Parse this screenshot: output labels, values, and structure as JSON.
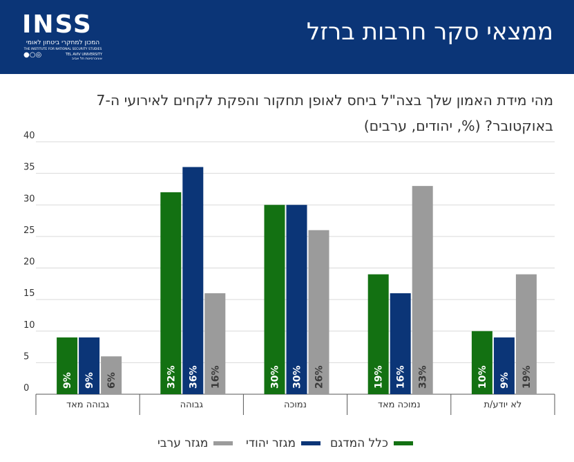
{
  "header": {
    "title": "ממצאי סקר חרבות ברזל",
    "logo": {
      "word": "INSS",
      "hebrew": "המכון למחקרי ביטחון לאומי",
      "english": "THE INSTITUTE FOR NATIONAL SECURITY STUDIES",
      "university_he": "אוניברסיטת תל אביב",
      "university_en": "TEL AVIV UNIVERSITY"
    }
  },
  "question": {
    "line1": "מהי מידת האמון שלך בצה\"ל ביחס לאופן תחקור והפקת לקחים לאירועי ה-7",
    "line2": "באוקטובר? (%, יהודים, ערבים)"
  },
  "colors": {
    "header_bg": "#0b3577",
    "general": "#137112",
    "jewish": "#0b3577",
    "arab": "#9b9b9b",
    "grid": "#d9d9d9",
    "axis_text": "#333333"
  },
  "chart_data": {
    "type": "bar",
    "categories": [
      "גבוהה מאד",
      "גבוהה",
      "נמוכה",
      "נמוכה מאד",
      "לא יודע/ת"
    ],
    "series": [
      {
        "name": "כלל המדגם",
        "values": [
          9,
          32,
          30,
          19,
          10
        ],
        "labels": [
          "9%",
          "32%",
          "30%",
          "19%",
          "10%"
        ],
        "color": "#137112"
      },
      {
        "name": "מגזר יהודי",
        "values": [
          9,
          36,
          30,
          16,
          9
        ],
        "labels": [
          "9%",
          "36%",
          "30%",
          "16%",
          "9%"
        ],
        "color": "#0b3577"
      },
      {
        "name": "מגזר ערבי",
        "values": [
          6,
          16,
          26,
          33,
          19
        ],
        "labels": [
          "6%",
          "16%",
          "26%",
          "33%",
          "19%"
        ],
        "color": "#9b9b9b"
      }
    ],
    "ylim": [
      0,
      40
    ],
    "yticks": [
      0,
      5,
      10,
      15,
      20,
      25,
      30,
      35,
      40
    ],
    "grid": true,
    "legend": "bottom"
  }
}
